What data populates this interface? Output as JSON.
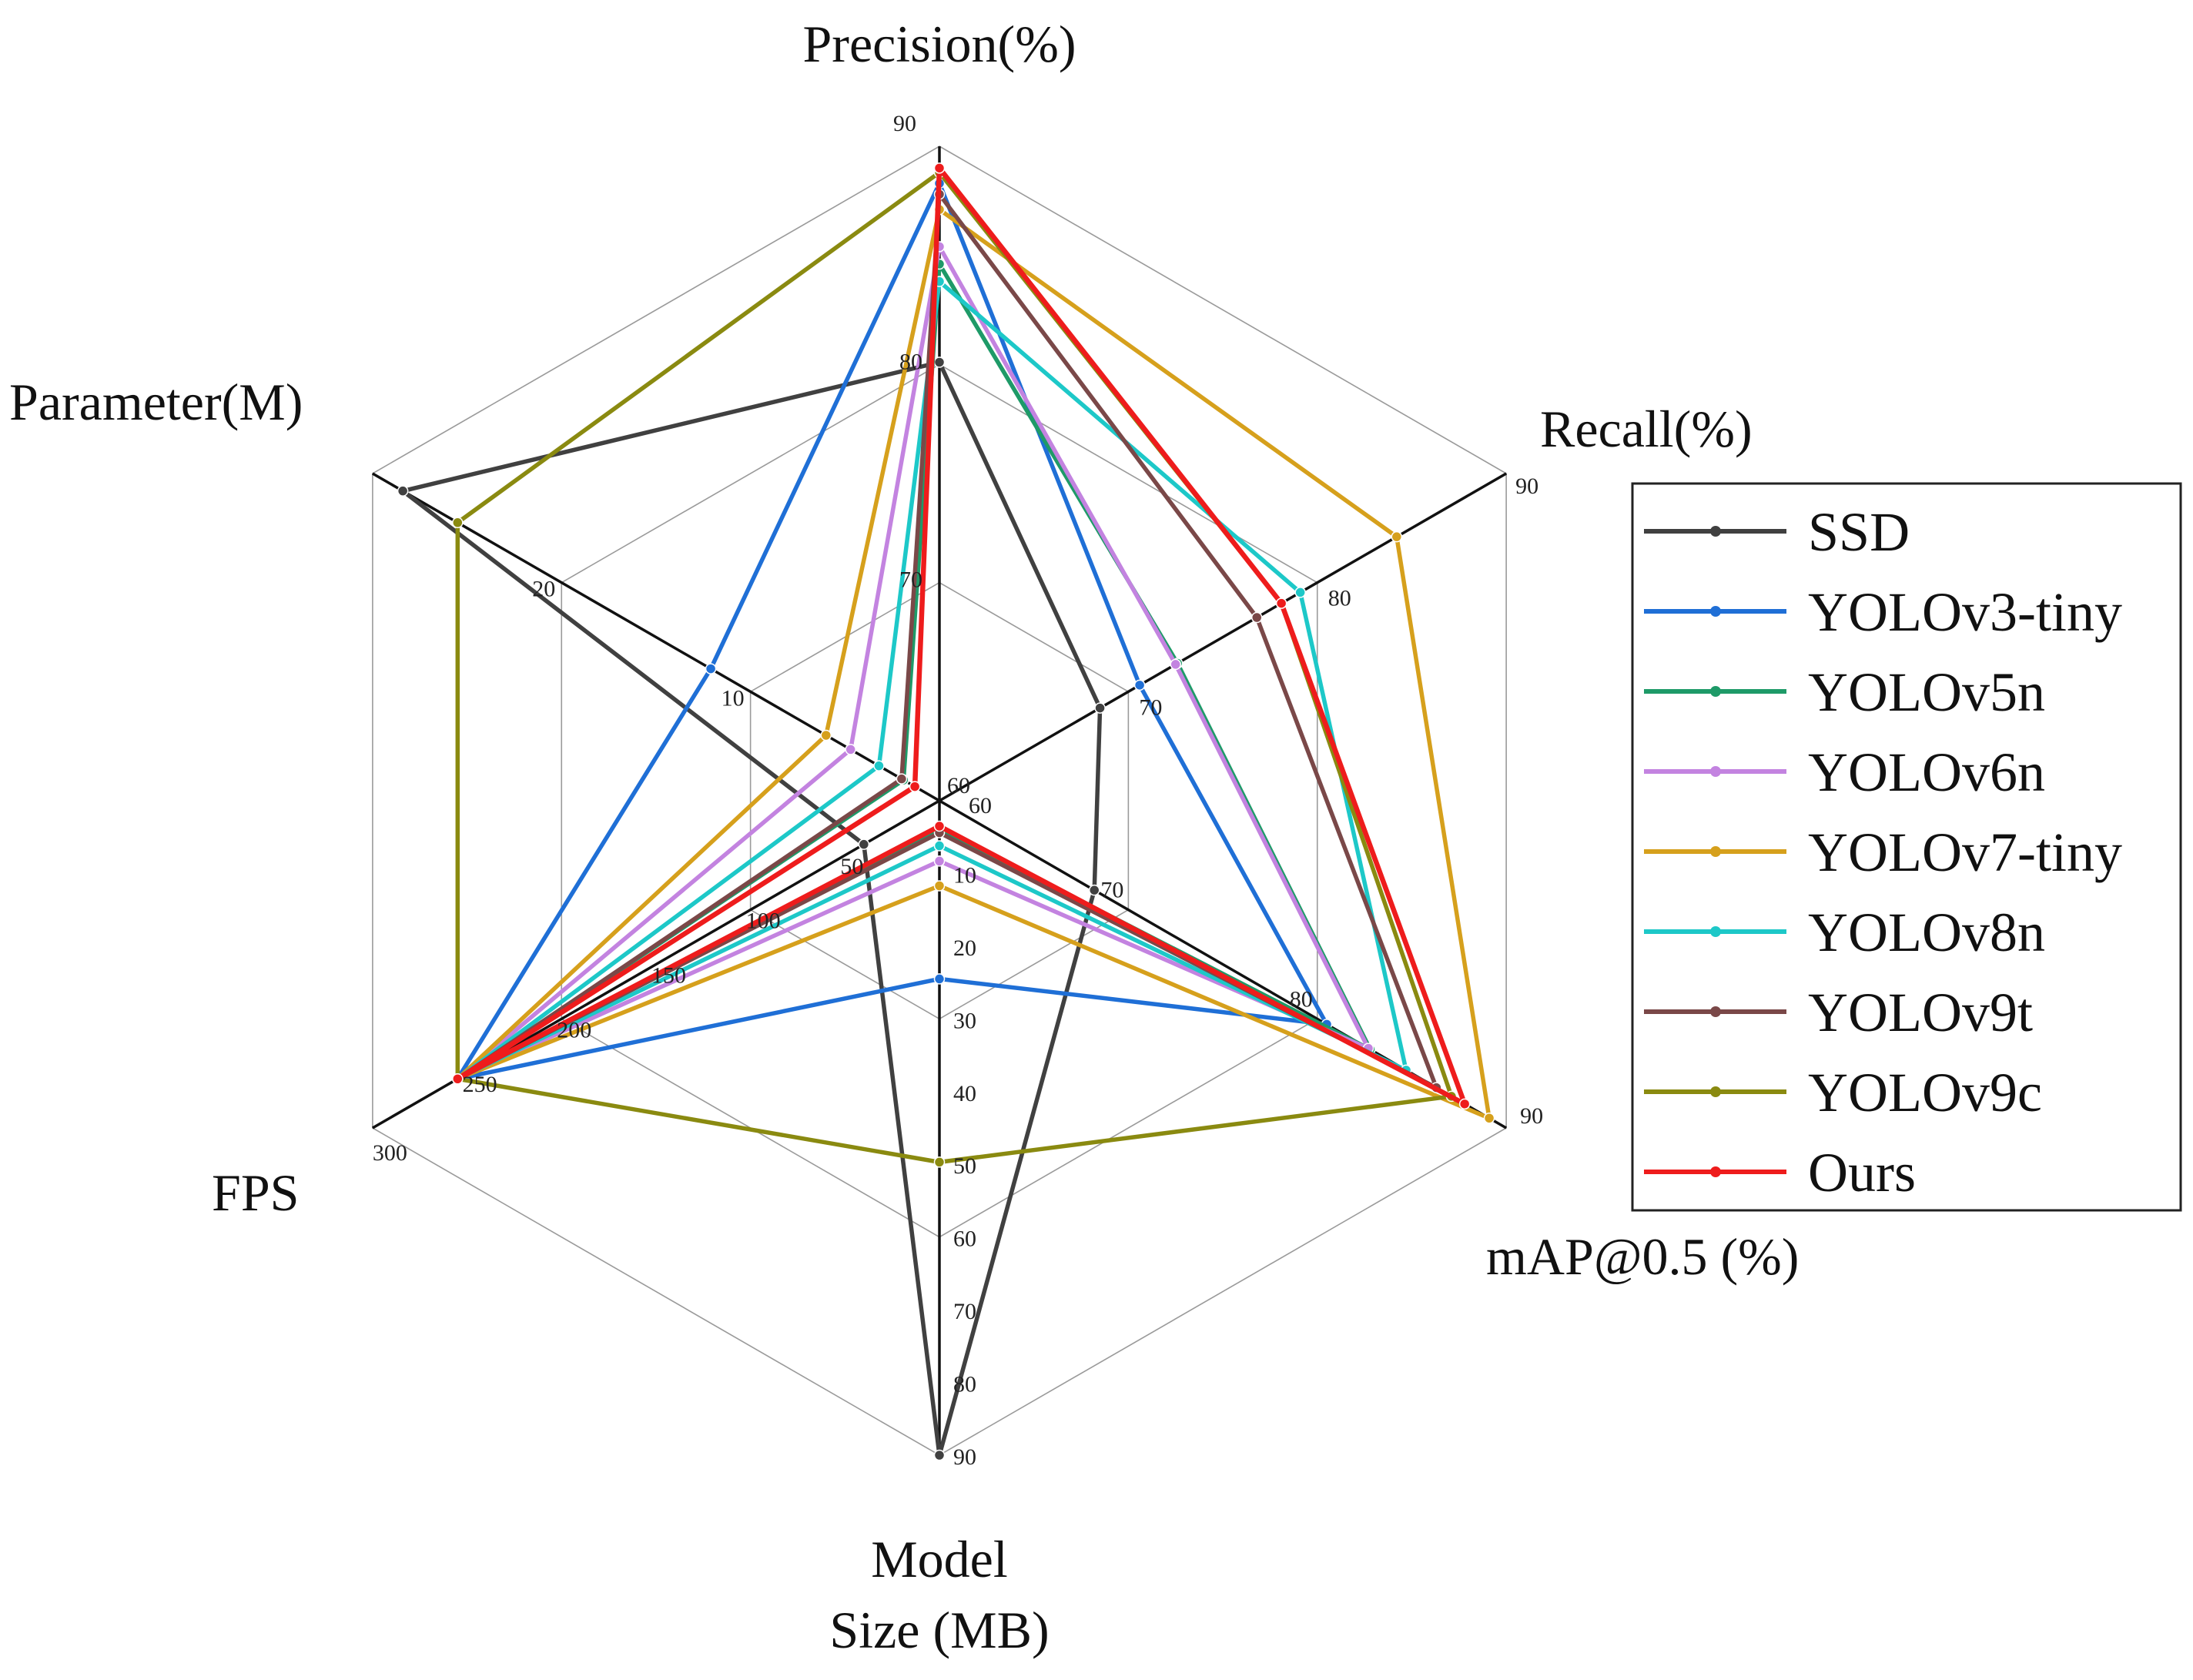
{
  "chart_data": {
    "type": "radar",
    "title": "",
    "axes": [
      {
        "label": "Precision(%)",
        "range": [
          60,
          90
        ],
        "ticks": [
          70,
          80,
          90
        ]
      },
      {
        "label": "Recall(%)",
        "range": [
          60,
          90
        ],
        "ticks": [
          70,
          80,
          90
        ]
      },
      {
        "label": "mAP@0.5 (%)",
        "range": [
          60,
          90
        ],
        "ticks": [
          70,
          80,
          90
        ]
      },
      {
        "label_lines": [
          "Model",
          "Size (MB)"
        ],
        "range": [
          0,
          90
        ],
        "ticks": [
          10,
          20,
          30,
          40,
          50,
          60,
          70,
          80,
          90
        ]
      },
      {
        "label": "FPS",
        "range": [
          0,
          300
        ],
        "ticks": [
          50,
          100,
          150,
          200,
          250,
          300
        ]
      },
      {
        "label": "Parameter(M)",
        "range": [
          0,
          30
        ],
        "ticks": [
          10,
          20
        ]
      }
    ],
    "center_label": "60",
    "series": [
      {
        "name": "SSD",
        "color": "#404040",
        "values": [
          80.1,
          68.5,
          68.2,
          90.0,
          40,
          28.4
        ]
      },
      {
        "name": "YOLOv3-tiny",
        "color": "#1f6fd6",
        "values": [
          88.3,
          70.6,
          80.5,
          24.5,
          255,
          12.1
        ]
      },
      {
        "name": "YOLOv5n",
        "color": "#1e9a68",
        "values": [
          84.6,
          72.6,
          82.8,
          3.8,
          255,
          1.9
        ]
      },
      {
        "name": "YOLOv6n",
        "color": "#c383e0",
        "values": [
          85.4,
          72.5,
          82.7,
          8.3,
          255,
          4.7
        ]
      },
      {
        "name": "YOLOv7-tiny",
        "color": "#d6a01c",
        "values": [
          87.1,
          84.2,
          89.1,
          11.7,
          255,
          6.0
        ]
      },
      {
        "name": "YOLOv8n",
        "color": "#1dc8c8",
        "values": [
          83.8,
          79.1,
          84.7,
          6.2,
          255,
          3.2
        ]
      },
      {
        "name": "YOLOv9t",
        "color": "#7a4848",
        "values": [
          87.8,
          76.8,
          86.3,
          4.4,
          255,
          2.0
        ]
      },
      {
        "name": "YOLOv9c",
        "color": "#8a8a10",
        "values": [
          88.8,
          78.1,
          87.1,
          49.7,
          255,
          25.5
        ]
      },
      {
        "name": "Ours",
        "color": "#ee1c1c",
        "values": [
          89.0,
          78.1,
          87.8,
          3.5,
          255,
          1.3
        ]
      }
    ],
    "legend_position": "right",
    "grid": "hexagonal"
  }
}
